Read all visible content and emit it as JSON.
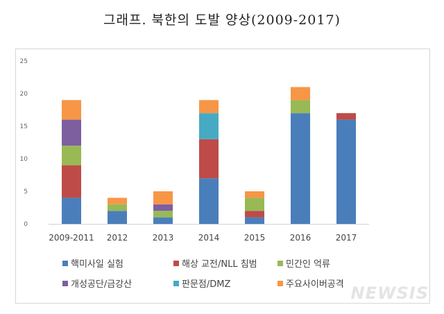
{
  "title": "그래프. 북한의 도발 양상(2009-2017)",
  "watermark": "NEWSIS",
  "chart_data": {
    "type": "bar",
    "stacked": true,
    "title": "그래프. 북한의 도발 양상(2009-2017)",
    "xlabel": "",
    "ylabel": "",
    "ylim": [
      0,
      25
    ],
    "yticks": [
      0,
      5,
      10,
      15,
      20,
      25
    ],
    "grid": false,
    "legend_position": "bottom",
    "categories": [
      "2009-2011",
      "2012",
      "2013",
      "2014",
      "2015",
      "2016",
      "2017"
    ],
    "series": [
      {
        "name": "핵미사일 실험",
        "color": "#4a7ebb",
        "values": [
          4,
          2,
          1,
          7,
          1,
          17,
          16
        ]
      },
      {
        "name": "해상 교전/NLL 침범",
        "color": "#be4b48",
        "values": [
          5,
          0,
          0,
          6,
          1,
          0,
          1
        ]
      },
      {
        "name": "민간인 억류",
        "color": "#98b954",
        "values": [
          3,
          1,
          1,
          0,
          2,
          2,
          0
        ]
      },
      {
        "name": "개성공단/금강산",
        "color": "#7d5fa0",
        "values": [
          4,
          0,
          1,
          0,
          0,
          0,
          0
        ]
      },
      {
        "name": "판문점/DMZ",
        "color": "#46aac5",
        "values": [
          0,
          0,
          0,
          4,
          0,
          0,
          0
        ]
      },
      {
        "name": "주요사이버공격",
        "color": "#f79646",
        "values": [
          3,
          1,
          2,
          2,
          1,
          2,
          0
        ]
      }
    ]
  }
}
